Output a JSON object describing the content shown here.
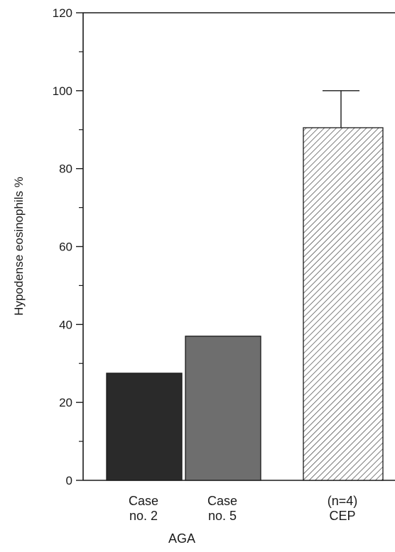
{
  "chart_data": {
    "type": "bar",
    "ylabel": "Hypodense eosinophils  %",
    "xlabel": "",
    "ylim": [
      0,
      120
    ],
    "yticks": [
      0,
      20,
      40,
      60,
      80,
      100,
      120
    ],
    "grid": false,
    "categories": [
      {
        "line1": "Case",
        "line2": "no. 2"
      },
      {
        "line1": "Case",
        "line2": "no. 5"
      },
      {
        "line1": "(n=4)",
        "line2": "CEP"
      }
    ],
    "values": [
      27.5,
      37,
      90.5
    ],
    "error_upper": [
      null,
      null,
      100
    ],
    "group_label": "AGA",
    "fills": [
      "#2a2a2a",
      "#6e6e6e",
      "hatch"
    ],
    "colors": {
      "dark_bar": "#2a2a2a",
      "gray_bar": "#6e6e6e",
      "axis": "#1a1a1a",
      "hatch": "#333333"
    }
  }
}
